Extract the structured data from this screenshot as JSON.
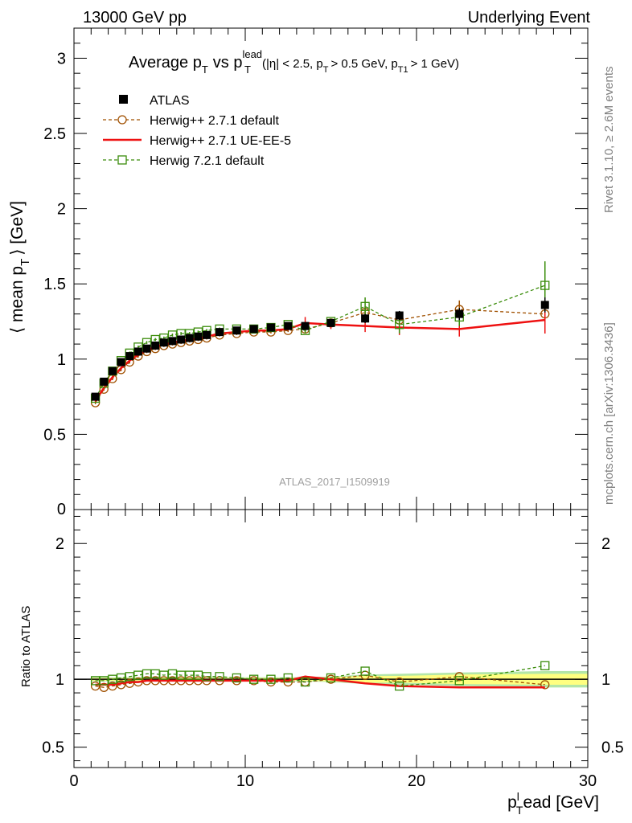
{
  "chart_data": {
    "type": "line",
    "header_left": "13000 GeV pp",
    "header_right": "Underlying Event",
    "title": {
      "main": "Average p",
      "main_sub": "T",
      "vs": "vs p",
      "vs_sup": "lead",
      "vs_sub": "T",
      "cuts_a": "(|η| < 2.5, p",
      "cuts_a_sub": "T",
      "cuts_b": "> 0.5 GeV, p",
      "cuts_b_sub": "T1",
      "cuts_c": "> 1 GeV)"
    },
    "ylabel_parts": {
      "pre": "⟨ mean p",
      "sub": "T",
      "post": "⟩ [GeV]"
    },
    "xlabel_parts": {
      "pre": "p",
      "sup": "l",
      "sub": "T",
      "post": "ead [GeV]"
    },
    "ratio_ylabel": "Ratio to ATLAS",
    "watermark": "ATLAS_2017_I1509919",
    "side_top": "Rivet 3.1.10, ≥ 2.6M events",
    "side_bottom": "mcplots.cern.ch [arXiv:1306.3436]",
    "xlim": [
      0,
      30
    ],
    "ylim": [
      0,
      3.2
    ],
    "ratio_ylim": [
      0.35,
      2.25
    ],
    "x_ticks": [
      0,
      10,
      20,
      30
    ],
    "y_ticks": [
      0.5,
      1,
      1.5,
      2,
      2.5,
      3
    ],
    "y_tick_labels": [
      "0.5",
      "1",
      "1.5",
      "2",
      "2.5",
      "3"
    ],
    "y_zero_label": "0",
    "ratio_ticks": [
      0.5,
      1,
      2
    ],
    "ratio_tick_labels": [
      "0.5",
      "1",
      "2"
    ],
    "x": [
      1.25,
      1.75,
      2.25,
      2.75,
      3.25,
      3.75,
      4.25,
      4.75,
      5.25,
      5.75,
      6.25,
      6.75,
      7.25,
      7.75,
      8.5,
      9.5,
      10.5,
      11.5,
      12.5,
      13.5,
      15.0,
      17.0,
      19.0,
      22.5,
      27.5
    ],
    "legend": [
      {
        "name": "ATLAS",
        "color": "#000000",
        "marker": "filled-square"
      },
      {
        "name": "Herwig++ 2.7.1 default",
        "color": "#a05000",
        "marker": "open-circle",
        "dash": "dashed"
      },
      {
        "name": "Herwig++ 2.7.1 UE-EE-5",
        "color": "#ee1111",
        "marker": "none",
        "dash": "solid"
      },
      {
        "name": "Herwig 7.2.1 default",
        "color": "#3a8c0a",
        "marker": "open-square",
        "dash": "dashed"
      }
    ],
    "series": [
      {
        "name": "ATLAS",
        "values": [
          0.75,
          0.85,
          0.92,
          0.98,
          1.02,
          1.05,
          1.07,
          1.09,
          1.11,
          1.12,
          1.13,
          1.14,
          1.15,
          1.16,
          1.18,
          1.19,
          1.2,
          1.21,
          1.22,
          1.22,
          1.24,
          1.27,
          1.29,
          1.3,
          1.36
        ],
        "errors": [
          0.01,
          0.01,
          0.01,
          0.01,
          0.01,
          0.01,
          0.01,
          0.01,
          0.01,
          0.01,
          0.01,
          0.01,
          0.01,
          0.01,
          0.01,
          0.01,
          0.01,
          0.01,
          0.01,
          0.02,
          0.02,
          0.03,
          0.03,
          0.04,
          0.05
        ]
      },
      {
        "name": "Herwig++ 2.7.1 default",
        "values": [
          0.71,
          0.8,
          0.87,
          0.93,
          0.98,
          1.02,
          1.05,
          1.07,
          1.09,
          1.1,
          1.11,
          1.12,
          1.13,
          1.14,
          1.16,
          1.17,
          1.18,
          1.18,
          1.19,
          1.2,
          1.24,
          1.31,
          1.26,
          1.33,
          1.3
        ],
        "errors": [
          0.01,
          0.01,
          0.01,
          0.01,
          0.01,
          0.01,
          0.01,
          0.01,
          0.01,
          0.01,
          0.01,
          0.01,
          0.01,
          0.01,
          0.01,
          0.01,
          0.01,
          0.01,
          0.01,
          0.02,
          0.02,
          0.04,
          0.05,
          0.06,
          0.1
        ]
      },
      {
        "name": "Herwig++ 2.7.1 UE-EE-5",
        "values": [
          0.72,
          0.81,
          0.88,
          0.94,
          0.99,
          1.03,
          1.06,
          1.08,
          1.1,
          1.11,
          1.12,
          1.13,
          1.14,
          1.15,
          1.17,
          1.18,
          1.19,
          1.19,
          1.2,
          1.24,
          1.23,
          1.22,
          1.21,
          1.2,
          1.26
        ],
        "errors": [
          0.01,
          0.01,
          0.01,
          0.01,
          0.01,
          0.01,
          0.01,
          0.01,
          0.01,
          0.01,
          0.01,
          0.01,
          0.01,
          0.01,
          0.01,
          0.01,
          0.01,
          0.01,
          0.01,
          0.04,
          0.03,
          0.04,
          0.05,
          0.05,
          0.09
        ]
      },
      {
        "name": "Herwig 7.2.1 default",
        "values": [
          0.74,
          0.84,
          0.92,
          0.99,
          1.04,
          1.08,
          1.11,
          1.13,
          1.14,
          1.16,
          1.17,
          1.17,
          1.18,
          1.19,
          1.2,
          1.2,
          1.2,
          1.21,
          1.23,
          1.19,
          1.25,
          1.35,
          1.23,
          1.28,
          1.49
        ],
        "errors": [
          0.01,
          0.01,
          0.01,
          0.01,
          0.01,
          0.01,
          0.01,
          0.01,
          0.01,
          0.01,
          0.01,
          0.01,
          0.01,
          0.01,
          0.01,
          0.01,
          0.01,
          0.01,
          0.01,
          0.02,
          0.02,
          0.06,
          0.06,
          0.06,
          0.16
        ]
      }
    ],
    "ratio_series": [
      {
        "name": "Herwig++ 2.7.1 default",
        "values": [
          0.95,
          0.94,
          0.95,
          0.96,
          0.97,
          0.98,
          0.99,
          0.99,
          0.99,
          0.99,
          0.99,
          0.99,
          0.99,
          0.99,
          0.99,
          0.99,
          0.99,
          0.98,
          0.98,
          0.98,
          1.0,
          1.03,
          0.98,
          1.02,
          0.96
        ]
      },
      {
        "name": "Herwig++ 2.7.1 UE-EE-5",
        "values": [
          0.96,
          0.96,
          0.96,
          0.97,
          0.98,
          0.98,
          0.99,
          0.99,
          0.99,
          0.99,
          0.99,
          0.99,
          0.99,
          0.99,
          0.99,
          0.99,
          0.99,
          0.99,
          0.99,
          1.02,
          1.0,
          0.97,
          0.95,
          0.94,
          0.94
        ]
      },
      {
        "name": "Herwig 7.2.1 default",
        "values": [
          0.99,
          0.99,
          1.0,
          1.01,
          1.02,
          1.03,
          1.04,
          1.04,
          1.03,
          1.04,
          1.03,
          1.03,
          1.03,
          1.02,
          1.02,
          1.01,
          1.0,
          1.0,
          1.01,
          0.98,
          1.01,
          1.06,
          0.95,
          0.99,
          1.1
        ]
      }
    ],
    "ratio_band": {
      "x": [
        1.0,
        13.0,
        15.0,
        17.0,
        19.0,
        22.5,
        27.5,
        30.0
      ],
      "inner": [
        0.01,
        0.01,
        0.015,
        0.025,
        0.025,
        0.035,
        0.04,
        0.04
      ],
      "outer": [
        0.015,
        0.015,
        0.02,
        0.035,
        0.04,
        0.05,
        0.06,
        0.06
      ],
      "inner_color": "#ffff80",
      "outer_color": "#b3e6a8"
    }
  }
}
